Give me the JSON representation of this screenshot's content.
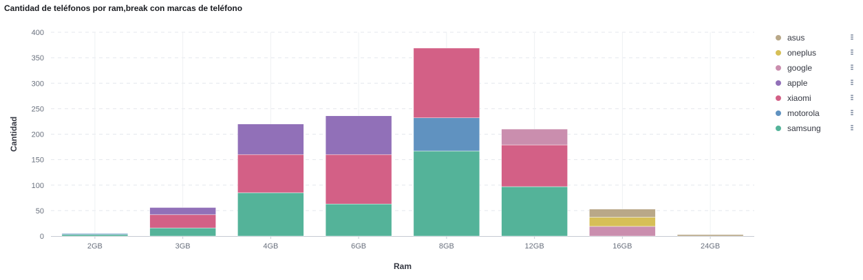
{
  "chart_data": {
    "type": "bar",
    "stacked": true,
    "title": "Cantidad de teléfonos por ram,break con marcas de teléfono",
    "xlabel": "Ram",
    "ylabel": "Cantidad",
    "ylim": [
      0,
      400
    ],
    "yticks": [
      0,
      50,
      100,
      150,
      200,
      250,
      300,
      350,
      400
    ],
    "grid": true,
    "legend_position": "right",
    "categories": [
      "2GB",
      "3GB",
      "4GB",
      "6GB",
      "8GB",
      "12GB",
      "16GB",
      "24GB"
    ],
    "series": [
      {
        "name": "samsung",
        "color": "#54b399",
        "values": [
          3,
          16,
          85,
          63,
          167,
          97,
          0,
          0
        ]
      },
      {
        "name": "motorola",
        "color": "#6092c0",
        "values": [
          2,
          0,
          0,
          0,
          65,
          0,
          0,
          0
        ]
      },
      {
        "name": "xiaomi",
        "color": "#d36086",
        "values": [
          0,
          26,
          75,
          97,
          137,
          82,
          0,
          0
        ]
      },
      {
        "name": "apple",
        "color": "#9170b8",
        "values": [
          0,
          14,
          60,
          76,
          0,
          0,
          0,
          0
        ]
      },
      {
        "name": "google",
        "color": "#ca8eae",
        "values": [
          0,
          0,
          0,
          0,
          0,
          31,
          19,
          0
        ]
      },
      {
        "name": "oneplus",
        "color": "#d6bf57",
        "values": [
          0,
          0,
          0,
          0,
          0,
          0,
          18,
          0
        ]
      },
      {
        "name": "asus",
        "color": "#b9a888",
        "values": [
          0,
          0,
          0,
          0,
          0,
          0,
          16,
          3
        ]
      }
    ]
  }
}
